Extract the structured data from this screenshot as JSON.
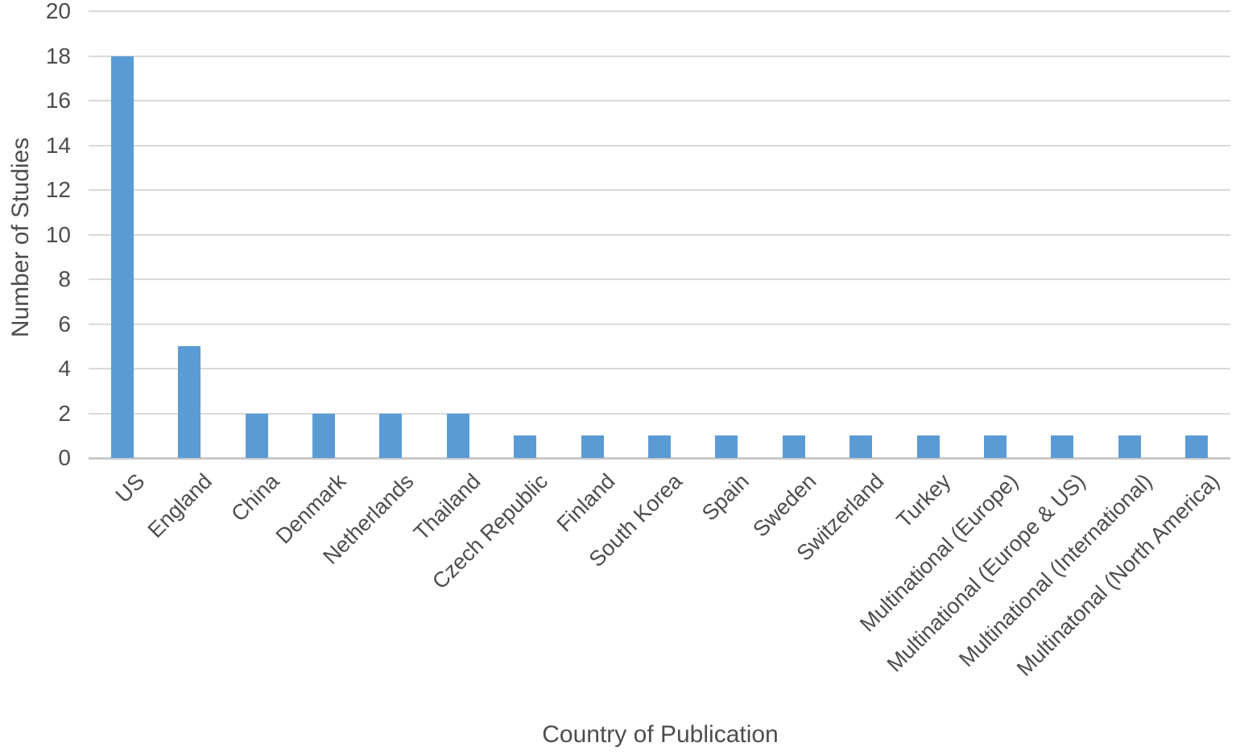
{
  "chart_data": {
    "type": "bar",
    "title": "",
    "xlabel": "Country of Publication",
    "ylabel": "Number of Studies",
    "categories": [
      "US",
      "England",
      "China",
      "Denmark",
      "Netherlands",
      "Thailand",
      "Czech Republic",
      "Finland",
      "South Korea",
      "Spain",
      "Sweden",
      "Switzerland",
      "Turkey",
      "Multinational (Europe)",
      "Multinational (Europe & US)",
      "Multinational (International)",
      "Multinatonal (North America)"
    ],
    "values": [
      18,
      5,
      2,
      2,
      2,
      2,
      1,
      1,
      1,
      1,
      1,
      1,
      1,
      1,
      1,
      1,
      1
    ],
    "ylim": [
      0,
      20
    ],
    "ytick_step": 2,
    "grid": true,
    "legend": "none",
    "bar_color": "#5B9BD5",
    "gridline_color": "#D9D9D9",
    "axis_line_color": "#C9C9C9",
    "text_color": "#4D4D4D",
    "background": "#FFFFFF"
  }
}
